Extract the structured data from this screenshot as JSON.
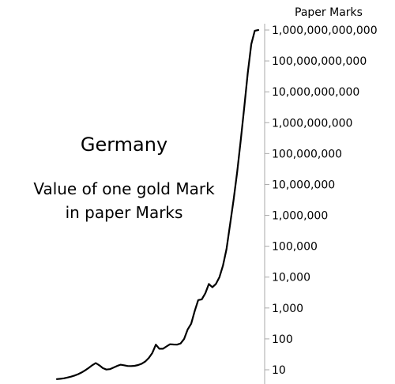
{
  "chart_data": {
    "type": "line",
    "title": "Germany",
    "subtitle_lines": [
      "Value of one gold Mark",
      "in paper Marks"
    ],
    "ylabel": "Paper Marks",
    "yscale": "log",
    "ylim": [
      5,
      1500000000000
    ],
    "y_ticks": [
      {
        "value": 10,
        "label": "10"
      },
      {
        "value": 100,
        "label": "100"
      },
      {
        "value": 1000,
        "label": "1,000"
      },
      {
        "value": 10000,
        "label": "10,000"
      },
      {
        "value": 100000,
        "label": "100,000"
      },
      {
        "value": 1000000,
        "label": "1,000,000"
      },
      {
        "value": 10000000,
        "label": "10,000,000"
      },
      {
        "value": 100000000,
        "label": "100,000,000"
      },
      {
        "value": 1000000000,
        "label": "1,000,000,000"
      },
      {
        "value": 10000000000,
        "label": "10,000,000,000"
      },
      {
        "value": 100000000000,
        "label": "100,000,000,000"
      },
      {
        "value": 1000000000000,
        "label": "1,000,000,000,000"
      }
    ],
    "x_axis_labels": "none",
    "grid": false,
    "axis_color": "#aaaaaa",
    "line_color": "#000000",
    "series": [
      {
        "x": [
          0,
          1,
          2,
          3,
          4,
          5,
          6,
          7,
          8,
          9,
          10,
          11,
          12,
          13,
          14,
          15,
          16,
          17,
          18,
          19,
          20,
          21,
          22,
          23,
          24,
          25,
          26,
          27,
          28,
          29,
          30,
          31,
          32,
          33,
          34,
          35,
          36,
          37,
          38,
          39,
          40,
          41,
          42,
          43,
          44,
          45,
          46,
          47,
          48,
          49,
          50,
          51,
          52,
          53,
          54,
          55,
          56,
          57
        ],
        "values": [
          5,
          5.1,
          5.3,
          5.6,
          6,
          6.5,
          7.2,
          8.2,
          9.6,
          11.5,
          14,
          16.5,
          14,
          11.3,
          10.2,
          10.5,
          11.8,
          13.3,
          14.6,
          14,
          13.3,
          13.2,
          13.4,
          14.2,
          15.7,
          18.5,
          24,
          35,
          65,
          48,
          48,
          57,
          67,
          66,
          65,
          71,
          100,
          200,
          310,
          800,
          1800,
          1900,
          3000,
          6000,
          4700,
          6000,
          10000,
          24000,
          80000,
          500000,
          3200000,
          25000000,
          250000000,
          3000000000,
          40000000000,
          350000000000,
          950000000000,
          1000000000000
        ]
      }
    ]
  }
}
